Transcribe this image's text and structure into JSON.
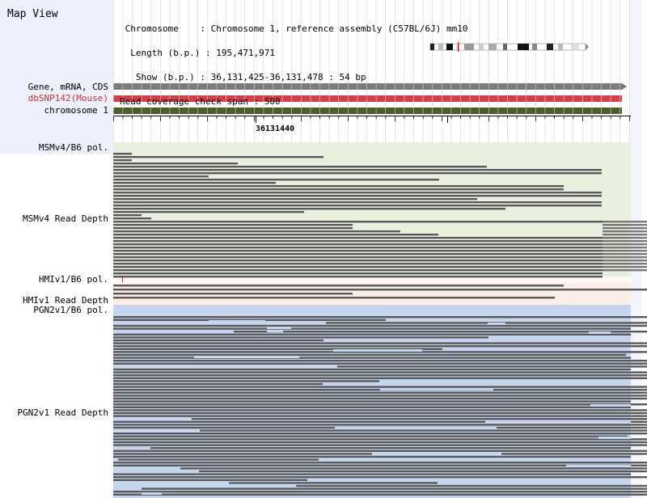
{
  "map": {
    "title": "Map View"
  },
  "info": {
    "line1": " Chromosome    : Chromosome 1, reference assembly (C57BL/6J) mm10",
    "line2": "  Length (b.p.) : 195,471,971",
    "line3": "   Show (b.p.) : 36,131,425-36,131,478 : 54 bp",
    "line4": "Read coverage check span : 500"
  },
  "tracks": {
    "gene": "Gene, mRNA, CDS",
    "snp": "dbSNP142(Mouse)",
    "chrom": "chromosome 1",
    "msm_pol": "MSMv4/B6 pol.",
    "msm_depth": "MSMv4 Read Depth",
    "hmi_pol": "HMIv1/B6 pol.",
    "hmi_depth": "HMIv1 Read Depth",
    "pgn_pol": "PGN2v1/B6 pol.",
    "pgn_depth": "PGN2v1 Read Depth"
  },
  "ruler": {
    "tick_label": "36131440"
  },
  "colors": {
    "gene_bar": "#7a7a7a",
    "snp_bar": "#d4404a",
    "chrom_bar": "#4a5e2a",
    "read": "#5a5a5a",
    "msm_bg": "#eaf0e0",
    "hmi_bg": "#fbeee6",
    "pgn_bg": "#c6d6ee"
  }
}
